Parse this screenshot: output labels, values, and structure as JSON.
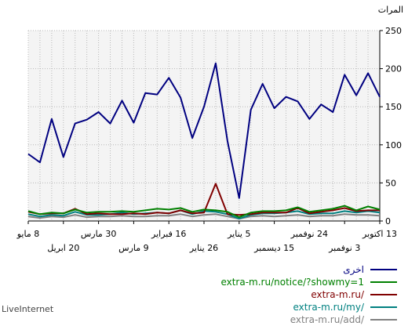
{
  "chart_data": {
    "type": "line",
    "ylabel": "المرات",
    "ylim": [
      0,
      250
    ],
    "yticks": [
      0,
      50,
      100,
      150,
      200,
      250
    ],
    "grid": true,
    "legend_position": "bottom-right",
    "x_tick_labels": [
      {
        "index": 0,
        "label": "13 اكتوبر",
        "row": 1
      },
      {
        "index": 3,
        "label": "3 نوفمبر",
        "row": 2
      },
      {
        "index": 6,
        "label": "24 نوفمبر",
        "row": 1
      },
      {
        "index": 9,
        "label": "15 ديسمبر",
        "row": 2
      },
      {
        "index": 12,
        "label": "5 يناير",
        "row": 1
      },
      {
        "index": 15,
        "label": "26 يناير",
        "row": 2
      },
      {
        "index": 18,
        "label": "16 فبراير",
        "row": 1
      },
      {
        "index": 21,
        "label": "9 مارس",
        "row": 2
      },
      {
        "index": 24,
        "label": "30 مارس",
        "row": 1
      },
      {
        "index": 27,
        "label": "20 ابريل",
        "row": 2
      },
      {
        "index": 30,
        "label": "8 مايو",
        "row": 1
      }
    ],
    "series": [
      {
        "name": "اخرى",
        "color": "#000080",
        "values": [
          163,
          194,
          165,
          192,
          143,
          153,
          134,
          157,
          163,
          148,
          180,
          146,
          30,
          105,
          207,
          150,
          109,
          162,
          188,
          166,
          168,
          129,
          158,
          128,
          143,
          133,
          128,
          84,
          134,
          77,
          88
        ]
      },
      {
        "name": "extra-m.ru/notice/?showmy=1",
        "color": "#008000",
        "values": [
          15,
          19,
          14,
          20,
          16,
          14,
          12,
          18,
          14,
          13,
          13,
          11,
          5,
          12,
          14,
          15,
          12,
          17,
          15,
          16,
          14,
          12,
          13,
          12,
          12,
          11,
          15,
          10,
          11,
          9,
          13
        ]
      },
      {
        "name": "extra-m.ru/",
        "color": "#800000",
        "values": [
          14,
          14,
          13,
          17,
          14,
          12,
          10,
          17,
          11,
          11,
          11,
          9,
          8,
          9,
          49,
          11,
          10,
          14,
          10,
          11,
          9,
          10,
          9,
          9,
          10,
          9,
          16,
          10,
          10,
          9,
          12
        ]
      },
      {
        "name": "extra-m.ru/my/",
        "color": "#008080",
        "values": [
          11,
          13,
          11,
          13,
          10,
          10,
          9,
          13,
          11,
          10,
          10,
          8,
          3,
          9,
          12,
          13,
          9,
          14,
          10,
          11,
          10,
          9,
          11,
          9,
          8,
          8,
          12,
          7,
          8,
          6,
          9
        ]
      },
      {
        "name": "extra-m.ru/add/",
        "color": "#808080",
        "values": [
          7,
          8,
          8,
          9,
          7,
          7,
          6,
          8,
          7,
          6,
          7,
          6,
          3,
          6,
          9,
          8,
          6,
          9,
          7,
          7,
          6,
          6,
          7,
          6,
          6,
          5,
          8,
          5,
          6,
          4,
          6
        ]
      }
    ]
  },
  "brand": "LiveInternet"
}
